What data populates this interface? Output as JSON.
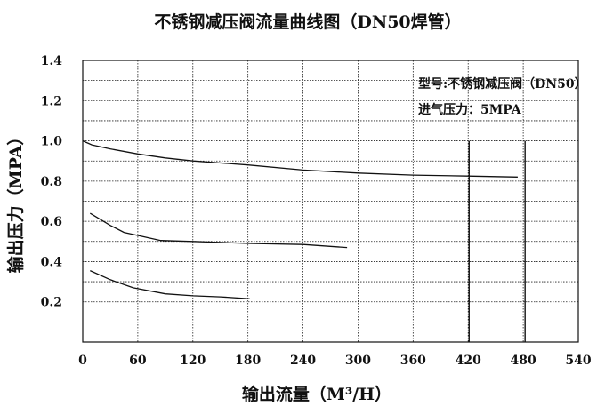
{
  "chart_data": {
    "type": "line",
    "title": "不锈钢减压阀流量曲线图（DN50焊管）",
    "xlabel": "输出流量（M³/H）",
    "ylabel": "输出压力（MPA）",
    "xlim": [
      0,
      540
    ],
    "ylim": [
      0,
      1.4
    ],
    "x_ticks": [
      "0",
      "60",
      "120",
      "180",
      "240",
      "300",
      "360",
      "420",
      "480",
      "540"
    ],
    "y_ticks": [
      "0.2",
      "0.4",
      "0.6",
      "0.8",
      "1.0",
      "1.2",
      "1.4"
    ],
    "grid": true,
    "annotations": [
      "型号:不锈钢减压阀（DN50）",
      "进气压力：5MPA"
    ],
    "vertical_lines": [
      421,
      482
    ],
    "series": [
      {
        "x": [
          0,
          10,
          30,
          60,
          90,
          120,
          180,
          240,
          300,
          360,
          420,
          474
        ],
        "y": [
          1.0,
          0.98,
          0.96,
          0.935,
          0.915,
          0.9,
          0.88,
          0.855,
          0.84,
          0.83,
          0.825,
          0.82
        ]
      },
      {
        "x": [
          8,
          30,
          45,
          60,
          85,
          120,
          180,
          240,
          288
        ],
        "y": [
          0.64,
          0.58,
          0.545,
          0.53,
          0.505,
          0.5,
          0.49,
          0.485,
          0.47
        ]
      },
      {
        "x": [
          8,
          30,
          55,
          90,
          120,
          150,
          182
        ],
        "y": [
          0.355,
          0.31,
          0.27,
          0.24,
          0.23,
          0.225,
          0.215
        ]
      }
    ]
  }
}
